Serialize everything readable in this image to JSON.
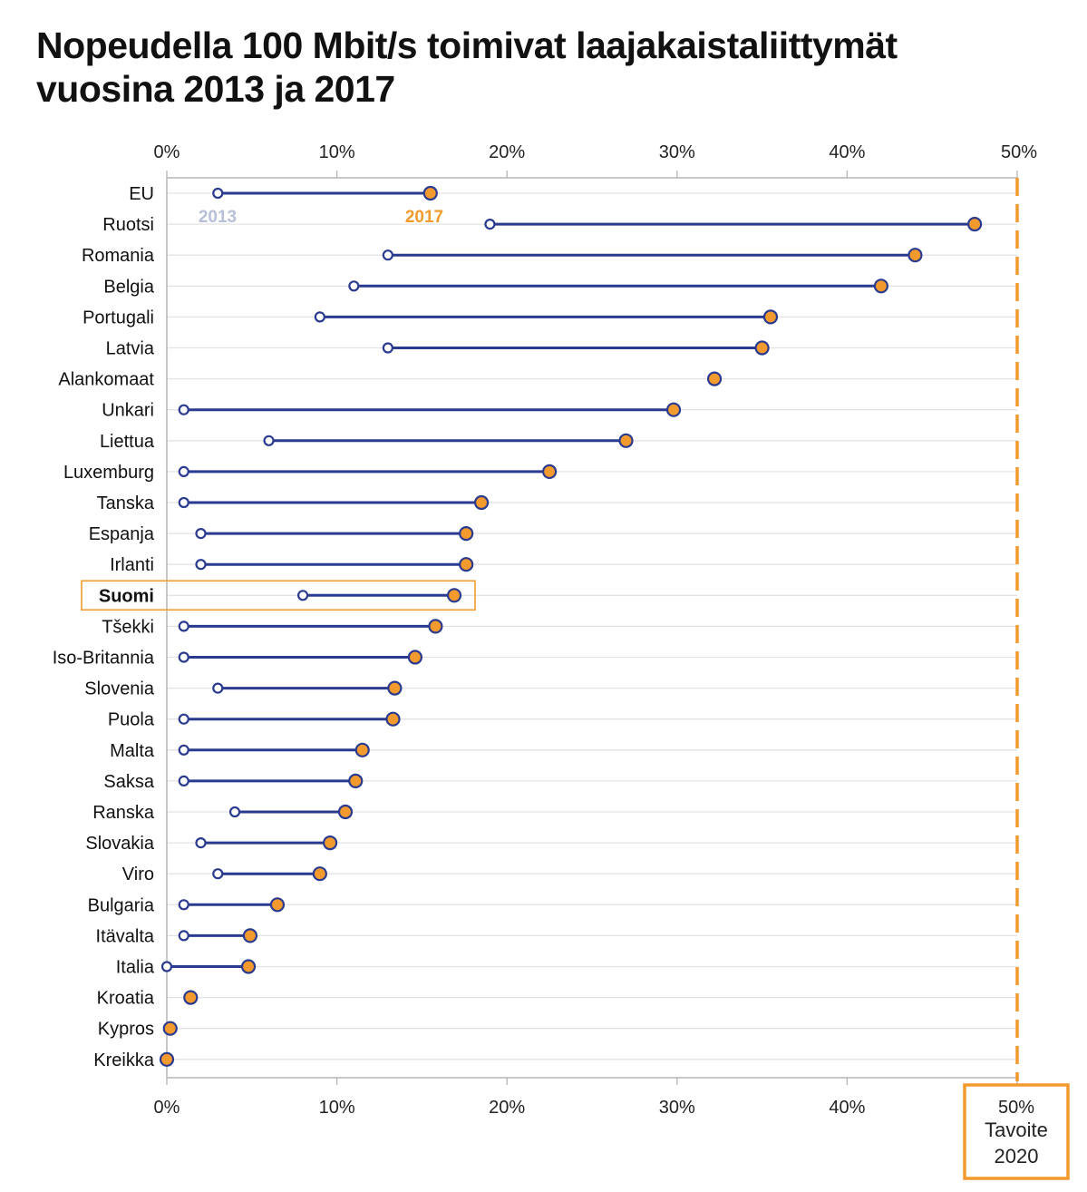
{
  "title_line1": "Nopeudella 100 Mbit/s toimivat laajakaistaliittymät",
  "title_line2": "vuosina 2013 ja 2017",
  "colors": {
    "line": "#2a3b8f",
    "marker_2017": "#f29a2e",
    "marker_2013_fill": "#ffffff",
    "label_2013": "#b7c0d8",
    "accent": "#f29a2e"
  },
  "chart_data": {
    "type": "dumbbell",
    "title": "Nopeudella 100 Mbit/s toimivat laajakaistaliittymät vuosina 2013 ja 2017",
    "xlim": [
      0,
      50
    ],
    "x_ticks": [
      "0%",
      "10%",
      "20%",
      "30%",
      "40%",
      "50%"
    ],
    "x_tick_values": [
      0,
      10,
      20,
      30,
      40,
      50
    ],
    "grid": true,
    "series_labels": {
      "start": "2013",
      "end": "2017"
    },
    "target": {
      "value": 50,
      "label_value": "50%",
      "label_line1": "Tavoite",
      "label_line2": "2020"
    },
    "highlight": "Suomi",
    "countries": [
      {
        "name": "EU",
        "v2013": 3,
        "v2017": 15.5
      },
      {
        "name": "Ruotsi",
        "v2013": 19,
        "v2017": 47.5
      },
      {
        "name": "Romania",
        "v2013": 13,
        "v2017": 44
      },
      {
        "name": "Belgia",
        "v2013": 11,
        "v2017": 42
      },
      {
        "name": "Portugali",
        "v2013": 9,
        "v2017": 35.5
      },
      {
        "name": "Latvia",
        "v2013": 13,
        "v2017": 35
      },
      {
        "name": "Alankomaat",
        "v2013": null,
        "v2017": 32.2
      },
      {
        "name": "Unkari",
        "v2013": 1,
        "v2017": 29.8
      },
      {
        "name": "Liettua",
        "v2013": 6,
        "v2017": 27
      },
      {
        "name": "Luxemburg",
        "v2013": 1,
        "v2017": 22.5
      },
      {
        "name": "Tanska",
        "v2013": 1,
        "v2017": 18.5
      },
      {
        "name": "Espanja",
        "v2013": 2,
        "v2017": 17.6
      },
      {
        "name": "Irlanti",
        "v2013": 2,
        "v2017": 17.6
      },
      {
        "name": "Suomi",
        "v2013": 8,
        "v2017": 16.9
      },
      {
        "name": "Tšekki",
        "v2013": 1,
        "v2017": 15.8
      },
      {
        "name": "Iso-Britannia",
        "v2013": 1,
        "v2017": 14.6
      },
      {
        "name": "Slovenia",
        "v2013": 3,
        "v2017": 13.4
      },
      {
        "name": "Puola",
        "v2013": 1,
        "v2017": 13.3
      },
      {
        "name": "Malta",
        "v2013": 1,
        "v2017": 11.5
      },
      {
        "name": "Saksa",
        "v2013": 1,
        "v2017": 11.1
      },
      {
        "name": "Ranska",
        "v2013": 4,
        "v2017": 10.5
      },
      {
        "name": "Slovakia",
        "v2013": 2,
        "v2017": 9.6
      },
      {
        "name": "Viro",
        "v2013": 3,
        "v2017": 9
      },
      {
        "name": "Bulgaria",
        "v2013": 1,
        "v2017": 6.5
      },
      {
        "name": "Itävalta",
        "v2013": 1,
        "v2017": 4.9
      },
      {
        "name": "Italia",
        "v2013": 0,
        "v2017": 4.8
      },
      {
        "name": "Kroatia",
        "v2013": null,
        "v2017": 1.4
      },
      {
        "name": "Kypros",
        "v2013": null,
        "v2017": 0.2
      },
      {
        "name": "Kreikka",
        "v2013": null,
        "v2017": 0
      }
    ]
  }
}
